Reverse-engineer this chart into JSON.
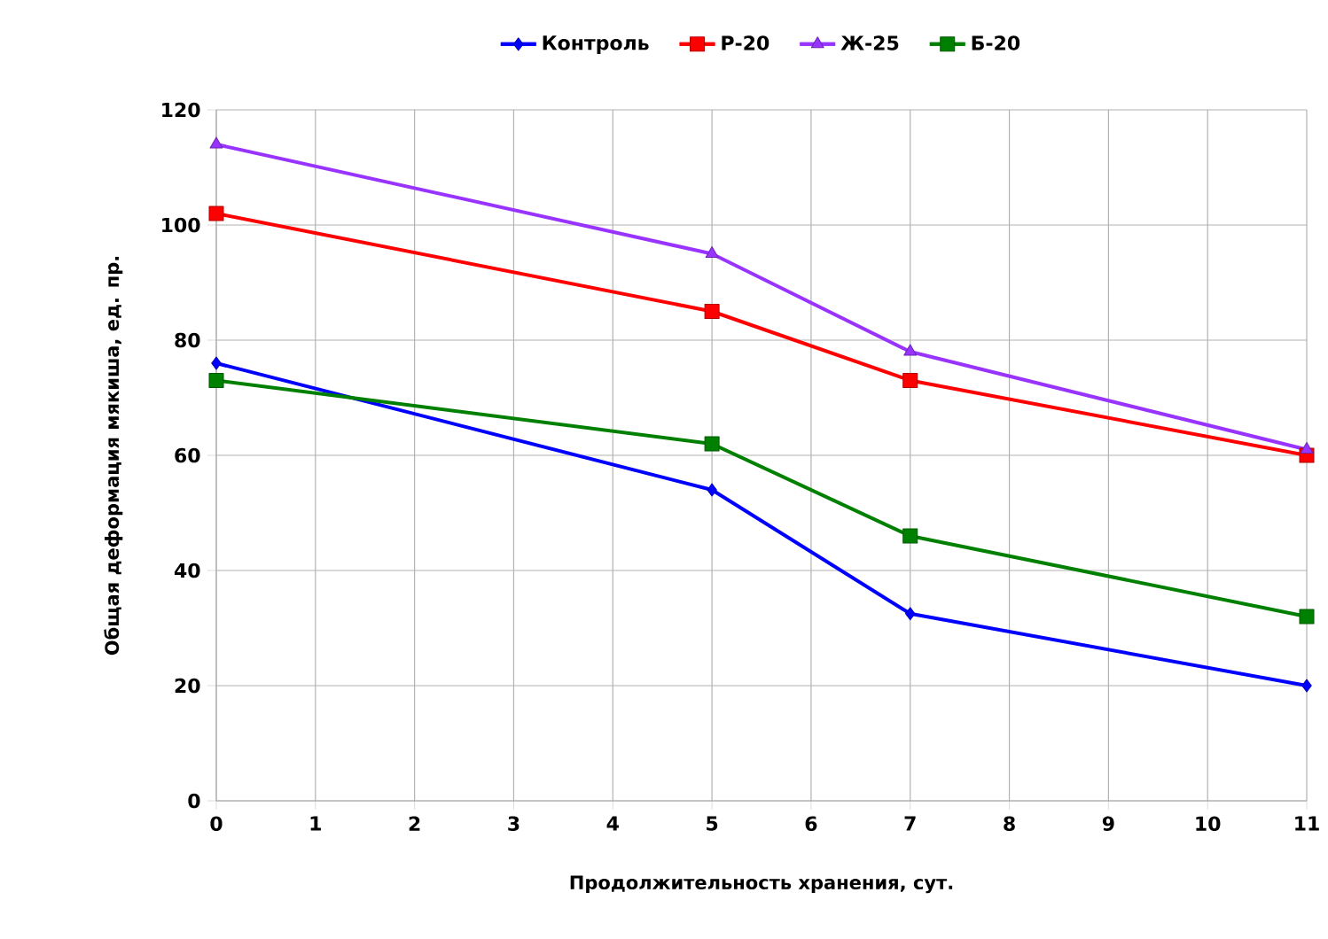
{
  "chart_data": {
    "type": "line",
    "xlabel": "Продолжительность хранения, сут.",
    "ylabel": "Общая деформация мякиша, ед. пр.",
    "x": [
      0,
      5,
      7,
      11
    ],
    "series": [
      {
        "name": "Контроль",
        "color": "#0000ff",
        "marker": "diamond",
        "values": [
          76,
          54,
          32.5,
          20
        ]
      },
      {
        "name": "Р-20",
        "color": "#ff0000",
        "marker": "square",
        "values": [
          102,
          85,
          73,
          60
        ]
      },
      {
        "name": "Ж-25",
        "color": "#9933ff",
        "marker": "triangle",
        "values": [
          114,
          95,
          78,
          61
        ]
      },
      {
        "name": "Б-20",
        "color": "#008000",
        "marker": "square",
        "values": [
          73,
          62,
          46,
          32
        ]
      }
    ],
    "xlim": [
      0,
      11
    ],
    "xticks": [
      0,
      1,
      2,
      3,
      4,
      5,
      6,
      7,
      8,
      9,
      10,
      11
    ],
    "ylim": [
      0,
      120
    ],
    "yticks": [
      0,
      20,
      40,
      60,
      80,
      100,
      120
    ],
    "grid": true,
    "legend": "top",
    "line_style": "solid"
  }
}
